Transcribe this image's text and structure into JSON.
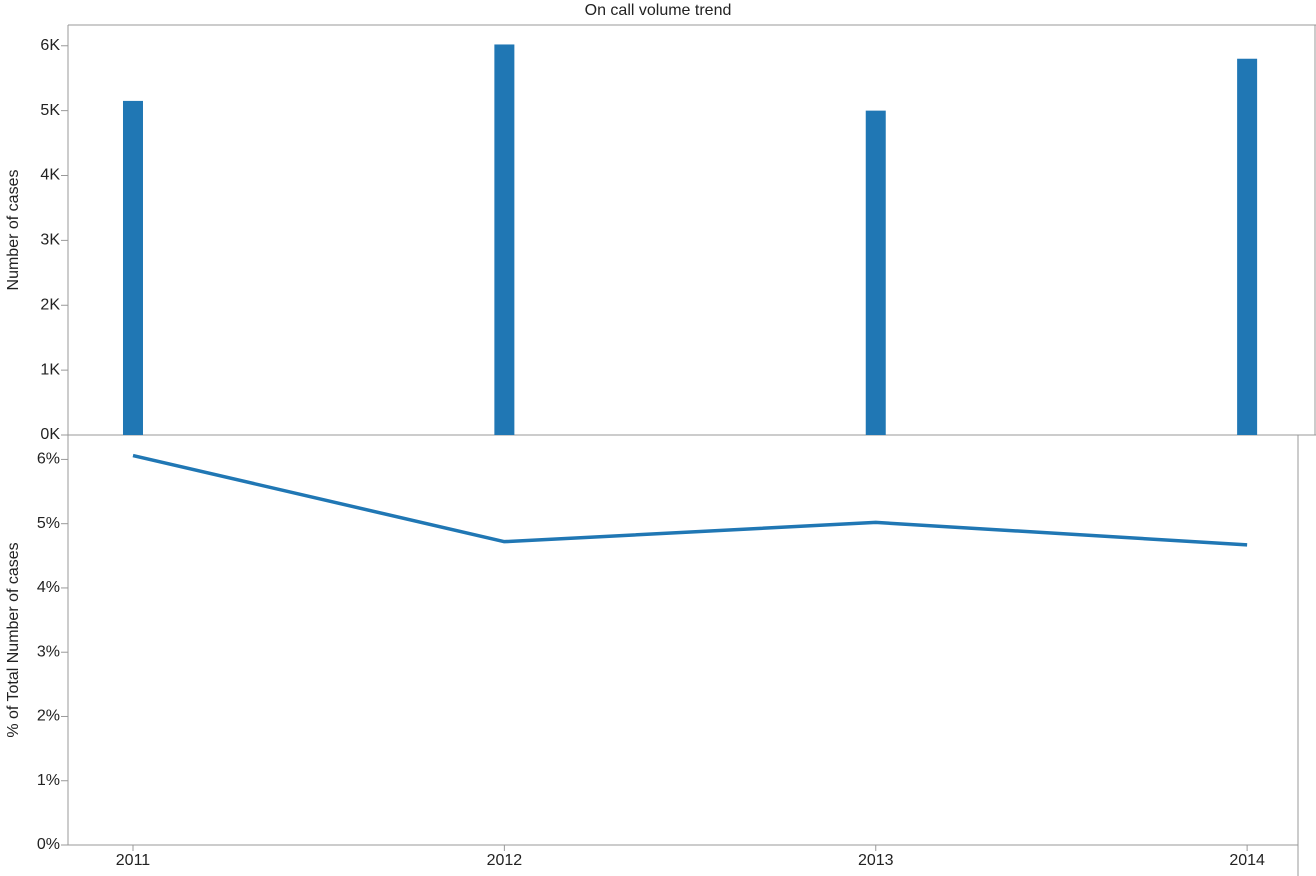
{
  "chart_data": [
    {
      "type": "bar",
      "title": "On call volume trend",
      "ylabel": "Number of cases",
      "x": [
        2011,
        2012,
        2013,
        2014
      ],
      "values": [
        5150,
        6020,
        5000,
        5800
      ],
      "color": "#2077b4",
      "xlim": [
        2010.825,
        2014.137
      ],
      "ylim": [
        0,
        6320
      ],
      "yticks": [
        {
          "value": 0,
          "label": "0K"
        },
        {
          "value": 1000,
          "label": "1K"
        },
        {
          "value": 2000,
          "label": "2K"
        },
        {
          "value": 3000,
          "label": "3K"
        },
        {
          "value": 4000,
          "label": "4K"
        },
        {
          "value": 5000,
          "label": "5K"
        },
        {
          "value": 6000,
          "label": "6K"
        }
      ]
    },
    {
      "type": "line",
      "ylabel": "% of Total Number of cases",
      "x": [
        2011,
        2012,
        2013,
        2014
      ],
      "values": [
        6.06,
        4.72,
        5.02,
        4.67
      ],
      "color": "#2077b4",
      "xlim": [
        2010.825,
        2014.137
      ],
      "xticks": [
        2011,
        2012,
        2013,
        2014
      ],
      "ylim": [
        0,
        6.38
      ],
      "yticks": [
        {
          "value": 0,
          "label": "0%"
        },
        {
          "value": 1,
          "label": "1%"
        },
        {
          "value": 2,
          "label": "2%"
        },
        {
          "value": 3,
          "label": "3%"
        },
        {
          "value": 4,
          "label": "4%"
        },
        {
          "value": 5,
          "label": "5%"
        },
        {
          "value": 6,
          "label": "6%"
        }
      ]
    }
  ]
}
